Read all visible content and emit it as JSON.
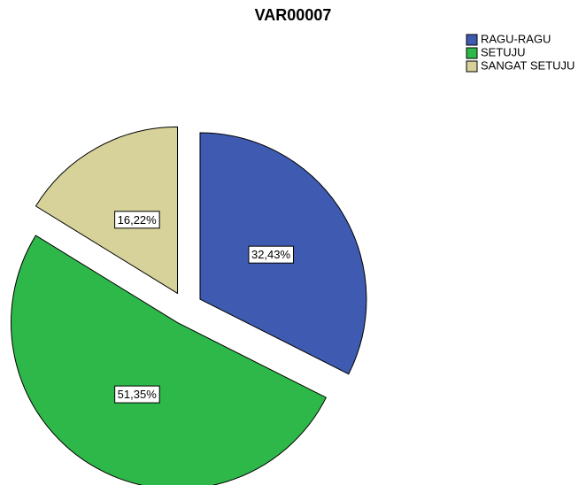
{
  "chart_data": {
    "type": "pie",
    "title": "VAR00007",
    "categories": [
      "RAGU-RAGU",
      "SETUJU",
      "SANGAT SETUJU"
    ],
    "values": [
      32.43,
      51.35,
      16.22
    ],
    "value_labels": [
      "32,43%",
      "51,35%",
      "16,22%"
    ],
    "colors": [
      "#3f5bb1",
      "#2fb84a",
      "#d6d29a"
    ],
    "legend": "top-right"
  }
}
